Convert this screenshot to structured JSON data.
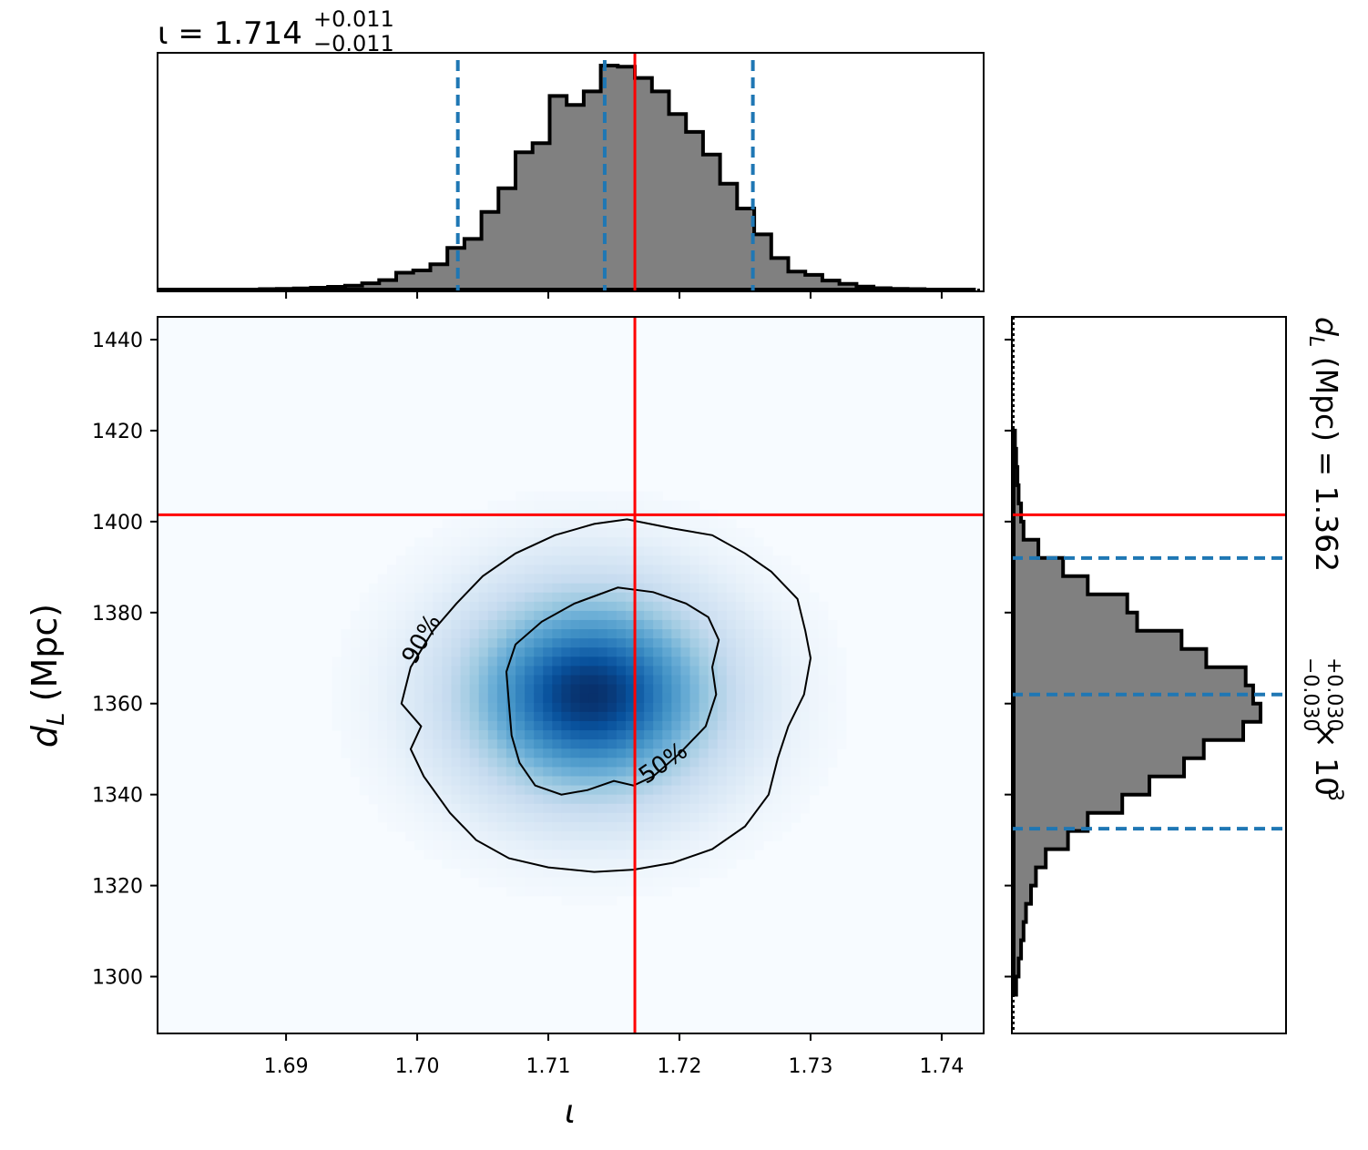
{
  "chart_data": [
    {
      "type": "area",
      "panel": "iota-marginal",
      "title": "ι = 1.714",
      "title_sup": "+0.011",
      "title_sub": "−0.011",
      "xlim": [
        1.6802,
        1.7432
      ],
      "x_ticks": [
        1.69,
        1.7,
        1.71,
        1.72,
        1.73,
        1.74
      ],
      "quantiles": [
        1.7031,
        1.7143,
        1.7256
      ],
      "injection": 1.7166,
      "histogram": {
        "bin_edges": [
          1.6802,
          1.6815,
          1.6828,
          1.6841,
          1.6854,
          1.6867,
          1.688,
          1.6893,
          1.6906,
          1.6919,
          1.6932,
          1.6945,
          1.6958,
          1.6971,
          1.6984,
          1.6997,
          1.701,
          1.7023,
          1.7036,
          1.7049,
          1.7062,
          1.7075,
          1.7088,
          1.7101,
          1.7114,
          1.7127,
          1.714,
          1.7153,
          1.7166,
          1.7179,
          1.7192,
          1.7205,
          1.7218,
          1.7231,
          1.7244,
          1.7257,
          1.727,
          1.7283,
          1.7296,
          1.7309,
          1.7322,
          1.7335,
          1.7348,
          1.7361,
          1.7374,
          1.7387,
          1.74,
          1.7413,
          1.7426
        ],
        "counts": [
          0,
          0,
          0,
          0,
          0,
          0,
          0.002,
          0.003,
          0.005,
          0.008,
          0.012,
          0.017,
          0.028,
          0.042,
          0.075,
          0.085,
          0.112,
          0.185,
          0.225,
          0.345,
          0.45,
          0.61,
          0.65,
          0.86,
          0.82,
          0.88,
          0.995,
          0.99,
          0.94,
          0.88,
          0.78,
          0.7,
          0.6,
          0.47,
          0.36,
          0.245,
          0.14,
          0.08,
          0.065,
          0.04,
          0.025,
          0.013,
          0.006,
          0.003,
          0.002,
          0,
          0,
          0
        ]
      }
    },
    {
      "type": "heatmap",
      "panel": "joint",
      "xlabel": "ι",
      "ylabel": "d",
      "ylabel_sub": "L",
      "ylabel_unit": "(Mpc)",
      "xlim": [
        1.6802,
        1.7432
      ],
      "ylim": [
        1287.5,
        1445
      ],
      "x_ticks": [
        "1.69",
        "1.70",
        "1.71",
        "1.72",
        "1.73",
        "1.74"
      ],
      "y_ticks": [
        "1300",
        "1320",
        "1340",
        "1360",
        "1380",
        "1400",
        "1420",
        "1440"
      ],
      "peak": {
        "x": 1.7132,
        "y": 1362
      },
      "spread": {
        "sx": 0.0065,
        "sy": 15
      },
      "injection": {
        "x": 1.7166,
        "y": 1401.5
      },
      "contours": [
        {
          "label": "50%",
          "points": [
            [
              1.7153,
              1385.5
            ],
            [
              1.718,
              1384.5
            ],
            [
              1.7205,
              1382
            ],
            [
              1.7222,
              1379
            ],
            [
              1.723,
              1374
            ],
            [
              1.7225,
              1368
            ],
            [
              1.7228,
              1362
            ],
            [
              1.722,
              1355
            ],
            [
              1.72,
              1349
            ],
            [
              1.718,
              1344
            ],
            [
              1.7165,
              1342
            ],
            [
              1.715,
              1343
            ],
            [
              1.713,
              1341
            ],
            [
              1.711,
              1340
            ],
            [
              1.709,
              1342
            ],
            [
              1.7078,
              1347
            ],
            [
              1.7072,
              1353
            ],
            [
              1.707,
              1360
            ],
            [
              1.7068,
              1367
            ],
            [
              1.7075,
              1373
            ],
            [
              1.7095,
              1378
            ],
            [
              1.712,
              1382
            ]
          ]
        },
        {
          "label": "90%",
          "points": [
            [
              1.716,
              1400.5
            ],
            [
              1.7195,
              1398.5
            ],
            [
              1.7225,
              1397
            ],
            [
              1.725,
              1393
            ],
            [
              1.727,
              1389
            ],
            [
              1.729,
              1383
            ],
            [
              1.7296,
              1376
            ],
            [
              1.73,
              1370
            ],
            [
              1.7295,
              1362
            ],
            [
              1.7283,
              1355
            ],
            [
              1.7275,
              1348
            ],
            [
              1.7268,
              1340
            ],
            [
              1.725,
              1333
            ],
            [
              1.7225,
              1328
            ],
            [
              1.7195,
              1325
            ],
            [
              1.7165,
              1323.5
            ],
            [
              1.7135,
              1323
            ],
            [
              1.71,
              1324
            ],
            [
              1.707,
              1326
            ],
            [
              1.7045,
              1330
            ],
            [
              1.7025,
              1336
            ],
            [
              1.7005,
              1344
            ],
            [
              1.6995,
              1350
            ],
            [
              1.7003,
              1355
            ],
            [
              1.6988,
              1360
            ],
            [
              1.6995,
              1368
            ],
            [
              1.7012,
              1376
            ],
            [
              1.703,
              1382
            ],
            [
              1.705,
              1388
            ],
            [
              1.7075,
              1393
            ],
            [
              1.7105,
              1397
            ],
            [
              1.7135,
              1399.5
            ]
          ]
        }
      ]
    },
    {
      "type": "area",
      "panel": "dL-marginal",
      "title": "d",
      "title_sub_L": "L",
      "title_mid": "(Mpc) = 1.362",
      "title_sup": "+0.030",
      "title_sub": "−0.030",
      "title_tail": "× 10",
      "title_exp": "3",
      "ylim": [
        1287.5,
        1445
      ],
      "quantiles": [
        1332.5,
        1362,
        1392
      ],
      "injection": 1401.5,
      "histogram": {
        "bin_edges": [
          1296,
          1300,
          1304,
          1308,
          1312,
          1316,
          1320,
          1324,
          1328,
          1332,
          1336,
          1340,
          1344,
          1348,
          1352,
          1356,
          1360,
          1364,
          1368,
          1372,
          1376,
          1380,
          1384,
          1388,
          1392,
          1396,
          1400,
          1404,
          1408,
          1412,
          1416,
          1420
        ],
        "counts": [
          0.01,
          0.02,
          0.03,
          0.04,
          0.05,
          0.07,
          0.09,
          0.13,
          0.22,
          0.3,
          0.44,
          0.55,
          0.69,
          0.77,
          0.93,
          1.0,
          0.97,
          0.94,
          0.78,
          0.68,
          0.5,
          0.46,
          0.3,
          0.2,
          0.1,
          0.04,
          0.03,
          0.02,
          0.015,
          0.01,
          0.005
        ]
      }
    }
  ],
  "colors": {
    "injection": "#ff0000",
    "quantile": "#1f77b4",
    "hist_fill": "#808080",
    "hist_edge": "#000000",
    "cmap_low": "#f7fbff",
    "cmap_high": "#08306b"
  }
}
